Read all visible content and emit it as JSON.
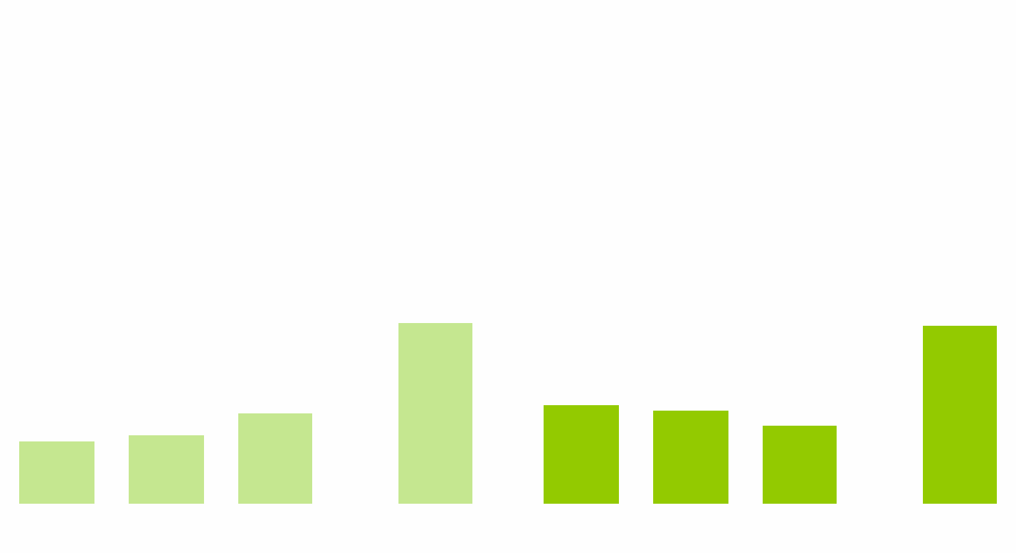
{
  "chart_data": {
    "type": "bar",
    "categories": [
      null,
      null,
      null,
      null,
      null,
      null,
      null,
      null
    ],
    "values": [
      91,
      100,
      132,
      264,
      144,
      136,
      114,
      260
    ],
    "colors": [
      "#c5e790",
      "#c5e790",
      "#c5e790",
      "#c5e790",
      "#93ca00",
      "#93ca00",
      "#93ca00",
      "#93ca00"
    ]
  }
}
